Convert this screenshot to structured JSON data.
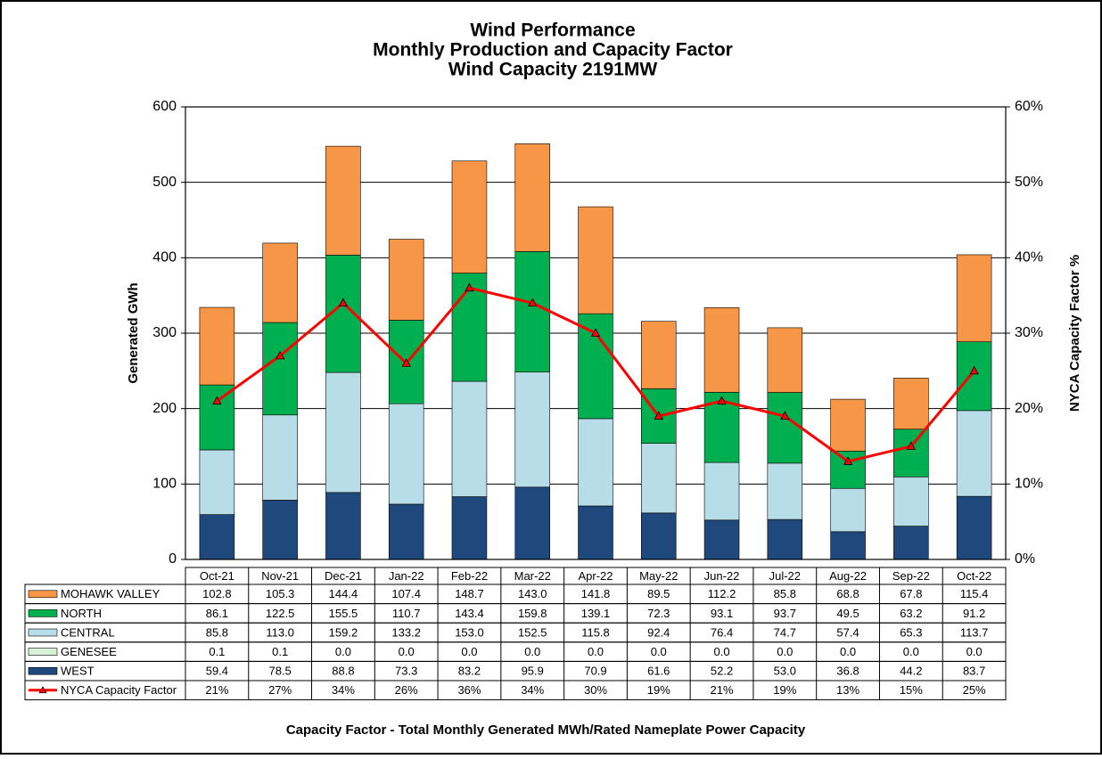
{
  "chart_data": {
    "type": "bar",
    "stacked": true,
    "title": [
      "Wind Performance",
      "Monthly Production and Capacity Factor",
      "Wind Capacity 2191MW"
    ],
    "y_label": "Generated GWh",
    "y2_label": "NYCA  Capacity  Factor %",
    "footnote": "Capacity Factor  - Total Monthly Generated MWh/Rated Nameplate Power Capacity",
    "categories": [
      "Oct-21",
      "Nov-21",
      "Dec-21",
      "Jan-22",
      "Feb-22",
      "Mar-22",
      "Apr-22",
      "May-22",
      "Jun-22",
      "Jul-22",
      "Aug-22",
      "Sep-22",
      "Oct-22"
    ],
    "ylim": [
      0,
      600
    ],
    "yticks": [
      0,
      100,
      200,
      300,
      400,
      500,
      600
    ],
    "y2lim": [
      0,
      60
    ],
    "y2ticks": [
      {
        "value": 0,
        "label": "0%"
      },
      {
        "value": 10,
        "label": "10%"
      },
      {
        "value": 20,
        "label": "20%"
      },
      {
        "value": 30,
        "label": "30%"
      },
      {
        "value": 40,
        "label": "40%"
      },
      {
        "value": 50,
        "label": "50%"
      },
      {
        "value": 60,
        "label": "60%"
      }
    ],
    "grid": true,
    "series": [
      {
        "name": "MOHAWK VALLEY",
        "color": "#F79646",
        "values": [
          102.8,
          105.3,
          144.4,
          107.4,
          148.7,
          143,
          141.8,
          89.5,
          112.2,
          85.8,
          68.8,
          67.8,
          115.4
        ],
        "value_labels": [
          "102.8",
          "105.3",
          "144.4",
          "107.4",
          "148.7",
          "143.0",
          "141.8",
          "89.5",
          "112.2",
          "85.8",
          "68.8",
          "67.8",
          "115.4"
        ]
      },
      {
        "name": "NORTH",
        "color": "#00B050",
        "values": [
          86.1,
          122.5,
          155.5,
          110.7,
          143.4,
          159.8,
          139.1,
          72.3,
          93.1,
          93.7,
          49.5,
          63.2,
          91.2
        ],
        "value_labels": [
          "86.1",
          "122.5",
          "155.5",
          "110.7",
          "143.4",
          "159.8",
          "139.1",
          "72.3",
          "93.1",
          "93.7",
          "49.5",
          "63.2",
          "91.2"
        ]
      },
      {
        "name": "CENTRAL",
        "color": "#B7DEE8",
        "values": [
          85.8,
          113,
          159.2,
          133.2,
          153,
          152.5,
          115.8,
          92.4,
          76.4,
          74.7,
          57.4,
          65.3,
          113.7
        ],
        "value_labels": [
          "85.8",
          "113.0",
          "159.2",
          "133.2",
          "153.0",
          "152.5",
          "115.8",
          "92.4",
          "76.4",
          "74.7",
          "57.4",
          "65.3",
          "113.7"
        ]
      },
      {
        "name": "GENESEE",
        "color": "#D8F2D8",
        "values": [
          0.1,
          0.1,
          0,
          0,
          0,
          0,
          0,
          0,
          0,
          0,
          0,
          0,
          0
        ],
        "value_labels": [
          "0.1",
          "0.1",
          "0.0",
          "0.0",
          "0.0",
          "0.0",
          "0.0",
          "0.0",
          "0.0",
          "0.0",
          "0.0",
          "0.0",
          "0.0"
        ]
      },
      {
        "name": "WEST",
        "color": "#1F497D",
        "values": [
          59.4,
          78.5,
          88.8,
          73.3,
          83.2,
          95.9,
          70.9,
          61.6,
          52.2,
          53,
          36.8,
          44.2,
          83.7
        ],
        "value_labels": [
          "59.4",
          "78.5",
          "88.8",
          "73.3",
          "83.2",
          "95.9",
          "70.9",
          "61.6",
          "52.2",
          "53.0",
          "36.8",
          "44.2",
          "83.7"
        ]
      },
      {
        "name": "NYCA Capacity Factor",
        "color": "#FF0000",
        "type": "line",
        "axis": "y2",
        "values": [
          21,
          27,
          34,
          26,
          36,
          34,
          30,
          19,
          21,
          19,
          13,
          15,
          25
        ],
        "value_labels": [
          "21%",
          "27%",
          "34%",
          "26%",
          "36%",
          "34%",
          "30%",
          "19%",
          "21%",
          "19%",
          "13%",
          "15%",
          "25%"
        ]
      }
    ]
  }
}
